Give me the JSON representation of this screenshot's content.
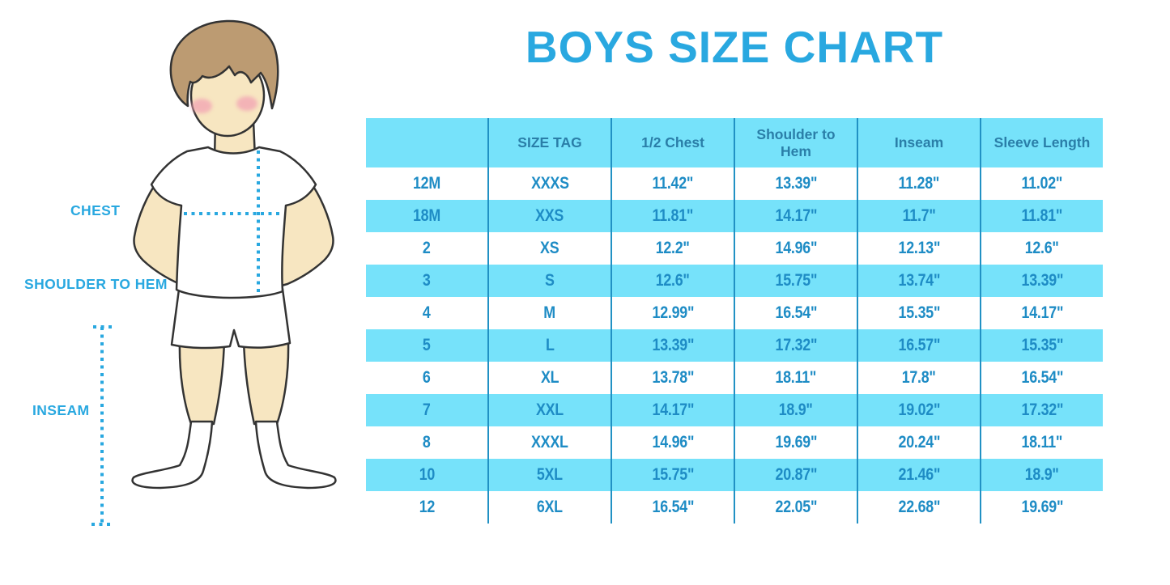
{
  "title": "BOYS SIZE CHART",
  "colors": {
    "accent_blue": "#29A8E0",
    "band_cyan": "#76E2FA",
    "divider_blue": "#2191C4",
    "cell_text_blue": "#1E8CC5",
    "header_text_blue": "#2A7EA8",
    "skin": "#F7E6C1",
    "hair_brown": "#BC9B72",
    "cheek_pink": "#F2A3B3",
    "outline": "#333333"
  },
  "figure": {
    "labels": {
      "chest": "CHEST",
      "shoulder_to_hem": "SHOULDER TO HEM",
      "inseam": "INSEAM"
    }
  },
  "chart_data": {
    "type": "table",
    "title": "BOYS SIZE CHART",
    "columns": [
      "",
      "SIZE TAG",
      "1/2 Chest",
      "Shoulder to Hem",
      "Inseam",
      "Sleeve Length"
    ],
    "rows": [
      [
        "12M",
        "XXXS",
        "11.42\"",
        "13.39\"",
        "11.28\"",
        "11.02\""
      ],
      [
        "18M",
        "XXS",
        "11.81\"",
        "14.17\"",
        "11.7\"",
        "11.81\""
      ],
      [
        "2",
        "XS",
        "12.2\"",
        "14.96\"",
        "12.13\"",
        "12.6\""
      ],
      [
        "3",
        "S",
        "12.6\"",
        "15.75\"",
        "13.74\"",
        "13.39\""
      ],
      [
        "4",
        "M",
        "12.99\"",
        "16.54\"",
        "15.35\"",
        "14.17\""
      ],
      [
        "5",
        "L",
        "13.39\"",
        "17.32\"",
        "16.57\"",
        "15.35\""
      ],
      [
        "6",
        "XL",
        "13.78\"",
        "18.11\"",
        "17.8\"",
        "16.54\""
      ],
      [
        "7",
        "XXL",
        "14.17\"",
        "18.9\"",
        "19.02\"",
        "17.32\""
      ],
      [
        "8",
        "XXXL",
        "14.96\"",
        "19.69\"",
        "20.24\"",
        "18.11\""
      ],
      [
        "10",
        "5XL",
        "15.75\"",
        "20.87\"",
        "21.46\"",
        "18.9\""
      ],
      [
        "12",
        "6XL",
        "16.54\"",
        "22.05\"",
        "22.68\"",
        "19.69\""
      ]
    ],
    "layout": {
      "banded_rows": "alternating white and cyan, header cyan",
      "gridlines": "vertical column dividers only"
    }
  }
}
